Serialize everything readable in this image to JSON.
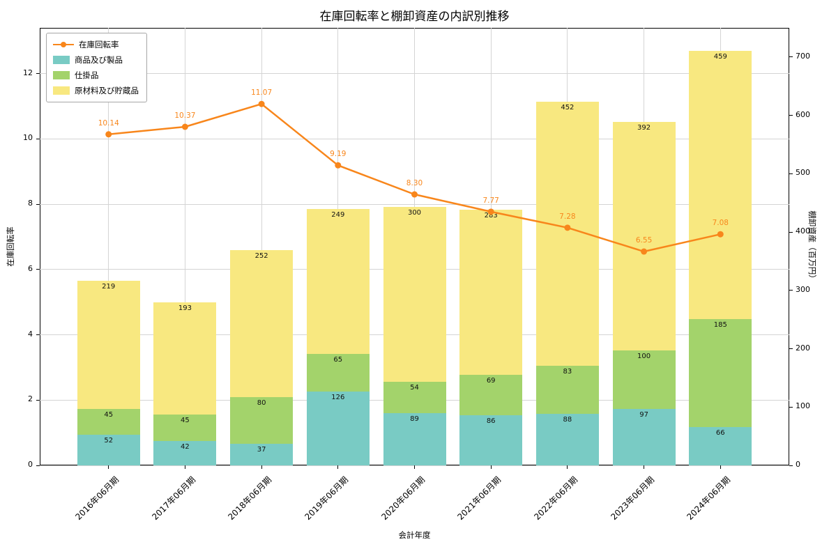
{
  "title": "在庫回転率と棚卸資産の内訳別推移",
  "chart_data": {
    "type": "bar",
    "subtype": "stacked-bars-with-line-overlay",
    "title": "在庫回転率と棚卸資産の内訳別推移",
    "xlabel": "会計年度",
    "ylabel_left": "在庫回転率",
    "ylabel_right": "棚卸資産（百万円）",
    "categories": [
      "2016年06月期",
      "2017年06月期",
      "2018年06月期",
      "2019年06月期",
      "2020年06月期",
      "2021年06月期",
      "2022年06月期",
      "2023年06月期",
      "2024年06月期"
    ],
    "bar_series": [
      {
        "name": "商品及び製品",
        "color": "#79cbc4",
        "values": [
          52,
          42,
          37,
          126,
          89,
          86,
          88,
          97,
          66
        ]
      },
      {
        "name": "仕掛品",
        "color": "#a3d36b",
        "values": [
          45,
          45,
          80,
          65,
          54,
          69,
          83,
          100,
          185
        ]
      },
      {
        "name": "原材料及び貯蔵品",
        "color": "#f8e880",
        "values": [
          219,
          193,
          252,
          249,
          300,
          283,
          452,
          392,
          459
        ]
      }
    ],
    "line_series": {
      "name": "在庫回転率",
      "color": "#f8861b",
      "values": [
        10.14,
        10.37,
        11.07,
        9.19,
        8.3,
        7.77,
        7.28,
        6.55,
        7.08
      ],
      "labels": [
        "10.14",
        "10.37",
        "11.07",
        "9.19",
        "8.30",
        "7.77",
        "7.28",
        "6.55",
        "7.08"
      ]
    },
    "ylim_left": [
      0,
      13.4
    ],
    "ylim_right": [
      0,
      750
    ],
    "yticks_left": [
      0,
      2,
      4,
      6,
      8,
      10,
      12
    ],
    "yticks_right": [
      0,
      100,
      200,
      300,
      400,
      500,
      600,
      700
    ],
    "grid": true,
    "legend_position": "upper-left"
  }
}
